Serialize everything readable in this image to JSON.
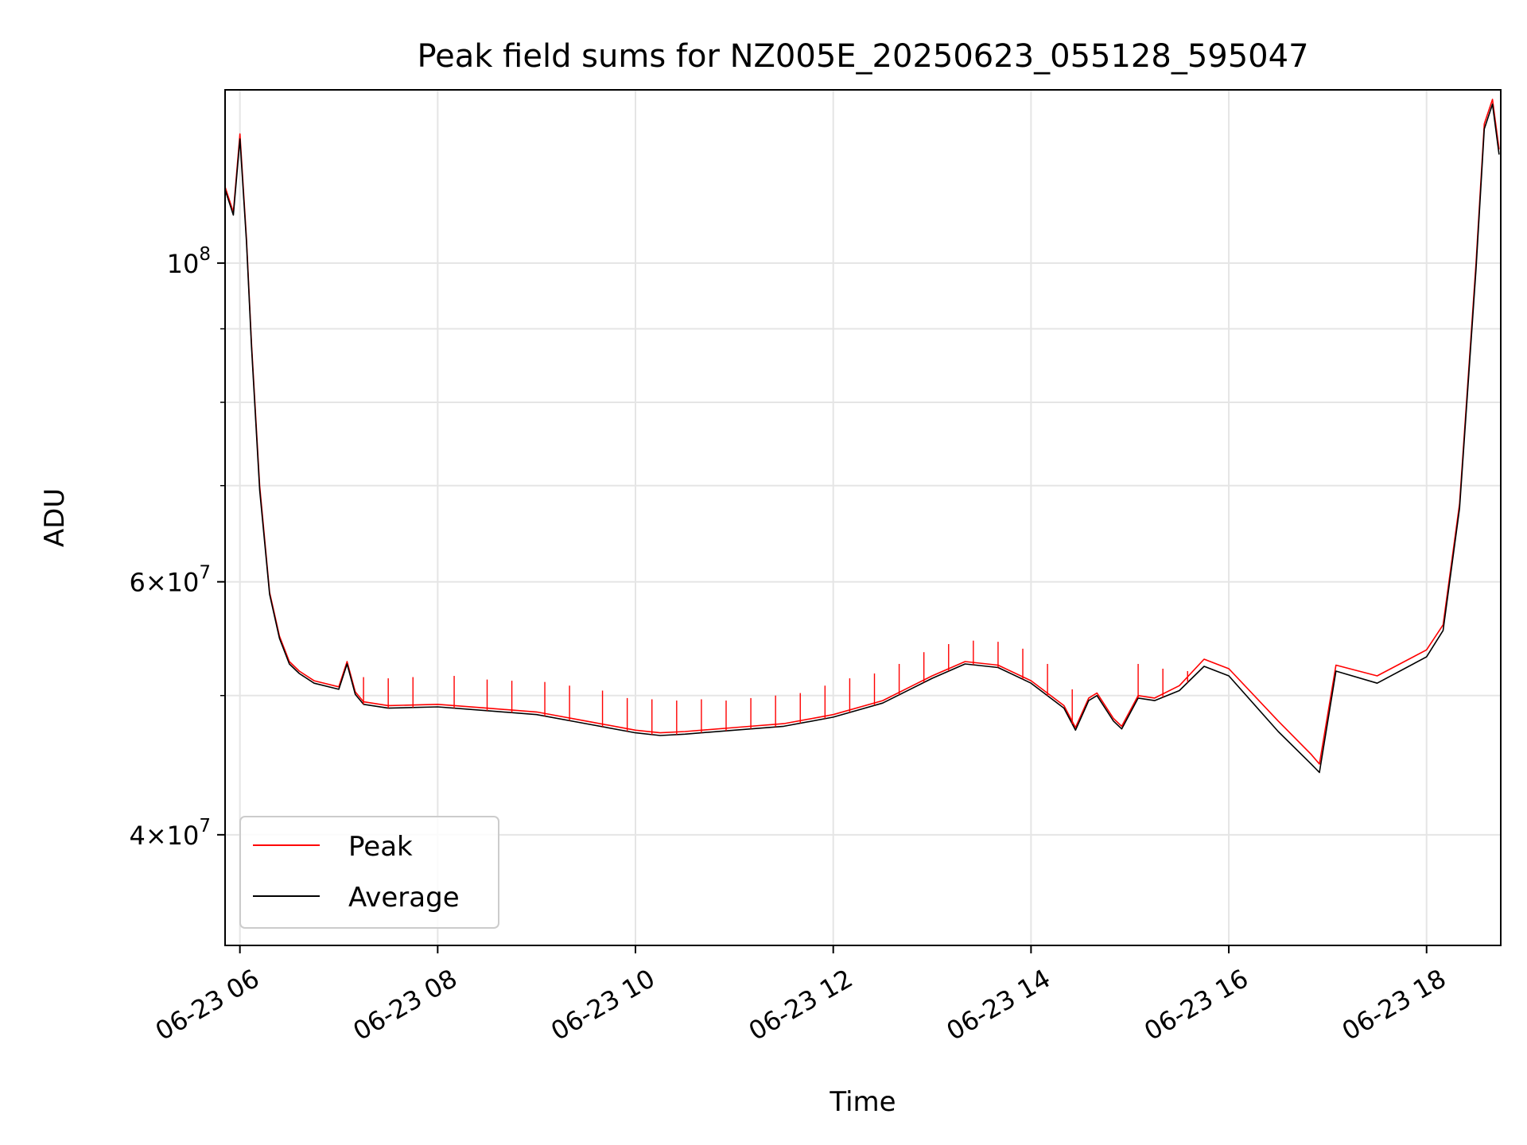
{
  "chart_data": {
    "type": "line",
    "title": "Peak field sums for NZ005E_20250623_055128_595047",
    "xlabel": "Time",
    "ylabel": "ADU",
    "yscale": "log",
    "xlim": [
      "2025-06-23T05:51",
      "2025-06-23T18:45"
    ],
    "ylim": [
      33500000,
      132000000
    ],
    "grid": true,
    "legend_position": "lower-left",
    "x_ticks": [
      {
        "t": "2025-06-23T06:00",
        "label": "06-23 06"
      },
      {
        "t": "2025-06-23T08:00",
        "label": "06-23 08"
      },
      {
        "t": "2025-06-23T10:00",
        "label": "06-23 10"
      },
      {
        "t": "2025-06-23T12:00",
        "label": "06-23 12"
      },
      {
        "t": "2025-06-23T14:00",
        "label": "06-23 14"
      },
      {
        "t": "2025-06-23T16:00",
        "label": "06-23 16"
      },
      {
        "t": "2025-06-23T18:00",
        "label": "06-23 18"
      }
    ],
    "y_ticks_major": [
      {
        "v": 40000000,
        "mantissa": "4",
        "times": "×",
        "base": "10",
        "exp": "7"
      },
      {
        "v": 60000000,
        "mantissa": "6",
        "times": "×",
        "base": "10",
        "exp": "7"
      },
      {
        "v": 100000000,
        "mantissa": "",
        "times": "",
        "base": "10",
        "exp": "8"
      }
    ],
    "y_ticks_minor": [
      50000000,
      70000000,
      80000000,
      90000000
    ],
    "series": [
      {
        "name": "Peak",
        "color": "#ff0000",
        "x": [
          "2025-06-23T05:51",
          "2025-06-23T05:56",
          "2025-06-23T06:00",
          "2025-06-23T06:04",
          "2025-06-23T06:07",
          "2025-06-23T06:12",
          "2025-06-23T06:18",
          "2025-06-23T06:24",
          "2025-06-23T06:30",
          "2025-06-23T06:36",
          "2025-06-23T06:45",
          "2025-06-23T07:00",
          "2025-06-23T07:05",
          "2025-06-23T07:10",
          "2025-06-23T07:15",
          "2025-06-23T07:30",
          "2025-06-23T08:00",
          "2025-06-23T08:30",
          "2025-06-23T09:00",
          "2025-06-23T09:30",
          "2025-06-23T10:00",
          "2025-06-23T10:15",
          "2025-06-23T10:30",
          "2025-06-23T11:00",
          "2025-06-23T11:30",
          "2025-06-23T12:00",
          "2025-06-23T12:30",
          "2025-06-23T13:00",
          "2025-06-23T13:20",
          "2025-06-23T13:40",
          "2025-06-23T14:00",
          "2025-06-23T14:20",
          "2025-06-23T14:27",
          "2025-06-23T14:35",
          "2025-06-23T14:40",
          "2025-06-23T14:50",
          "2025-06-23T14:55",
          "2025-06-23T15:05",
          "2025-06-23T15:15",
          "2025-06-23T15:30",
          "2025-06-23T15:45",
          "2025-06-23T16:00",
          "2025-06-23T16:30",
          "2025-06-23T16:50",
          "2025-06-23T16:55",
          "2025-06-23T17:05",
          "2025-06-23T17:30",
          "2025-06-23T18:00",
          "2025-06-23T18:10",
          "2025-06-23T18:20",
          "2025-06-23T18:30",
          "2025-06-23T18:35",
          "2025-06-23T18:40",
          "2025-06-23T18:44"
        ],
        "y": [
          113000000,
          108500000,
          123000000,
          104000000,
          88000000,
          70000000,
          59000000,
          55000000,
          52800000,
          52000000,
          51200000,
          50700000,
          52800000,
          50300000,
          49500000,
          49200000,
          49300000,
          49000000,
          48700000,
          48000000,
          47300000,
          47100000,
          47200000,
          47500000,
          47800000,
          48500000,
          49600000,
          51600000,
          52800000,
          52500000,
          51200000,
          49200000,
          47500000,
          49800000,
          50200000,
          48200000,
          47600000,
          50000000,
          49800000,
          50800000,
          53000000,
          52200000,
          48000000,
          45500000,
          44800000,
          52500000,
          51600000,
          53800000,
          56000000,
          68000000,
          100000000,
          125000000,
          130000000,
          120000000
        ],
        "spikes": [
          [
            "2025-06-23T07:15",
            51500000
          ],
          [
            "2025-06-23T07:30",
            51400000
          ],
          [
            "2025-06-23T07:45",
            51500000
          ],
          [
            "2025-06-23T08:10",
            51600000
          ],
          [
            "2025-06-23T08:30",
            51300000
          ],
          [
            "2025-06-23T08:45",
            51200000
          ],
          [
            "2025-06-23T09:05",
            51100000
          ],
          [
            "2025-06-23T09:20",
            50800000
          ],
          [
            "2025-06-23T09:40",
            50400000
          ],
          [
            "2025-06-23T09:55",
            49800000
          ],
          [
            "2025-06-23T10:10",
            49700000
          ],
          [
            "2025-06-23T10:25",
            49600000
          ],
          [
            "2025-06-23T10:40",
            49700000
          ],
          [
            "2025-06-23T10:55",
            49600000
          ],
          [
            "2025-06-23T11:10",
            49800000
          ],
          [
            "2025-06-23T11:25",
            50000000
          ],
          [
            "2025-06-23T11:40",
            50200000
          ],
          [
            "2025-06-23T11:55",
            50800000
          ],
          [
            "2025-06-23T12:10",
            51400000
          ],
          [
            "2025-06-23T12:25",
            51800000
          ],
          [
            "2025-06-23T12:40",
            52600000
          ],
          [
            "2025-06-23T12:55",
            53600000
          ],
          [
            "2025-06-23T13:10",
            54300000
          ],
          [
            "2025-06-23T13:25",
            54600000
          ],
          [
            "2025-06-23T13:40",
            54500000
          ],
          [
            "2025-06-23T13:55",
            53900000
          ],
          [
            "2025-06-23T14:10",
            52600000
          ],
          [
            "2025-06-23T14:25",
            50500000
          ],
          [
            "2025-06-23T15:05",
            52600000
          ],
          [
            "2025-06-23T15:20",
            52200000
          ],
          [
            "2025-06-23T15:35",
            52000000
          ]
        ]
      },
      {
        "name": "Average",
        "color": "#000000",
        "x": [
          "2025-06-23T05:51",
          "2025-06-23T05:56",
          "2025-06-23T06:00",
          "2025-06-23T06:04",
          "2025-06-23T06:07",
          "2025-06-23T06:12",
          "2025-06-23T06:18",
          "2025-06-23T06:24",
          "2025-06-23T06:30",
          "2025-06-23T06:36",
          "2025-06-23T06:45",
          "2025-06-23T07:00",
          "2025-06-23T07:05",
          "2025-06-23T07:10",
          "2025-06-23T07:15",
          "2025-06-23T07:30",
          "2025-06-23T08:00",
          "2025-06-23T08:30",
          "2025-06-23T09:00",
          "2025-06-23T09:30",
          "2025-06-23T10:00",
          "2025-06-23T10:15",
          "2025-06-23T10:30",
          "2025-06-23T11:00",
          "2025-06-23T11:30",
          "2025-06-23T12:00",
          "2025-06-23T12:30",
          "2025-06-23T13:00",
          "2025-06-23T13:20",
          "2025-06-23T13:40",
          "2025-06-23T14:00",
          "2025-06-23T14:20",
          "2025-06-23T14:27",
          "2025-06-23T14:35",
          "2025-06-23T14:40",
          "2025-06-23T14:50",
          "2025-06-23T14:55",
          "2025-06-23T15:05",
          "2025-06-23T15:15",
          "2025-06-23T15:30",
          "2025-06-23T15:45",
          "2025-06-23T16:00",
          "2025-06-23T16:30",
          "2025-06-23T16:50",
          "2025-06-23T16:55",
          "2025-06-23T17:05",
          "2025-06-23T17:30",
          "2025-06-23T18:00",
          "2025-06-23T18:10",
          "2025-06-23T18:20",
          "2025-06-23T18:30",
          "2025-06-23T18:35",
          "2025-06-23T18:40",
          "2025-06-23T18:44"
        ],
        "y": [
          112500000,
          108000000,
          122000000,
          103500000,
          87500000,
          69500000,
          58800000,
          54800000,
          52600000,
          51800000,
          51000000,
          50500000,
          52600000,
          50100000,
          49300000,
          49000000,
          49100000,
          48800000,
          48500000,
          47800000,
          47100000,
          46900000,
          47000000,
          47300000,
          47600000,
          48300000,
          49400000,
          51400000,
          52600000,
          52300000,
          51000000,
          49000000,
          47300000,
          49600000,
          50000000,
          48000000,
          47400000,
          49800000,
          49600000,
          50400000,
          52400000,
          51600000,
          47200000,
          44800000,
          44200000,
          52000000,
          51000000,
          53200000,
          55500000,
          67500000,
          99000000,
          124000000,
          129000000,
          119000000
        ]
      }
    ]
  }
}
